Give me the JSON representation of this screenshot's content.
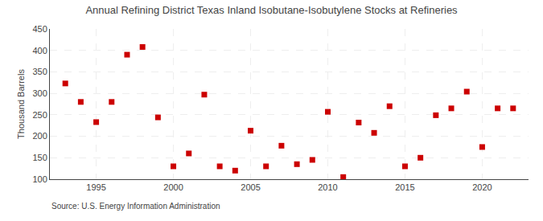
{
  "chart_data": {
    "type": "scatter",
    "title": "Annual Refining District Texas Inland Isobutane-Isobutylene Stocks at Refineries",
    "ylabel": "Thousand Barrels",
    "source": "Source: U.S. Energy Information Administration",
    "color": "#cc0000",
    "marker": "square",
    "grid": true,
    "x": [
      1993,
      1994,
      1995,
      1996,
      1997,
      1998,
      1999,
      2000,
      2001,
      2002,
      2003,
      2004,
      2005,
      2006,
      2007,
      2008,
      2009,
      2010,
      2011,
      2012,
      2013,
      2014,
      2015,
      2016,
      2017,
      2018,
      2019,
      2020,
      2021,
      2022
    ],
    "values": [
      323,
      280,
      233,
      280,
      390,
      408,
      244,
      130,
      160,
      297,
      130,
      120,
      213,
      130,
      178,
      135,
      145,
      257,
      105,
      232,
      208,
      270,
      130,
      150,
      249,
      265,
      304,
      175,
      265,
      265
    ],
    "xlim": [
      1992,
      2023
    ],
    "xticks": [
      1995,
      2000,
      2005,
      2010,
      2015,
      2020
    ],
    "ylim": [
      100,
      450
    ],
    "yticks": [
      100,
      150,
      200,
      250,
      300,
      350,
      400,
      450
    ]
  }
}
